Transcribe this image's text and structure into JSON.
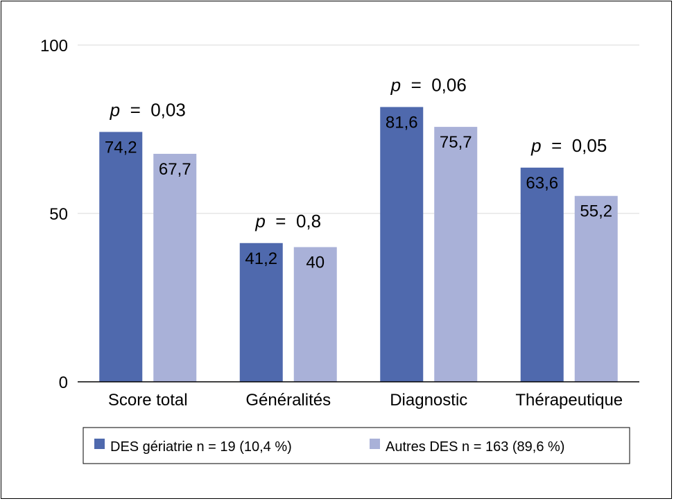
{
  "chart_data": {
    "type": "bar",
    "categories": [
      "Score total",
      "Généralités",
      "Diagnostic",
      "Thérapeutique"
    ],
    "series": [
      {
        "name": "DES gériatrie n = 19 (10,4 %)",
        "values": [
          74.2,
          41.2,
          81.6,
          63.6
        ],
        "labels": [
          "74,2",
          "41,2",
          "81,6",
          "63,6"
        ],
        "color": "#4f69ad"
      },
      {
        "name": "Autres DES n = 163 (89,6 %)",
        "values": [
          67.7,
          40,
          75.7,
          55.2
        ],
        "labels": [
          "67,7",
          "40",
          "75,7",
          "55,2"
        ],
        "color": "#a9b1d8"
      }
    ],
    "annotations": [
      {
        "category": "Score total",
        "prefix": "p",
        "text": " = 0,03"
      },
      {
        "category": "Généralités",
        "prefix": "p",
        "text": " = 0,8"
      },
      {
        "category": "Diagnostic",
        "prefix": "p",
        "text": " = 0,06"
      },
      {
        "category": "Thérapeutique",
        "prefix": "p",
        "text": " = 0,05"
      }
    ],
    "yticks": [
      "0",
      "50",
      "100"
    ],
    "ylim": [
      0,
      100
    ],
    "grid": true,
    "legend_position": "bottom"
  }
}
